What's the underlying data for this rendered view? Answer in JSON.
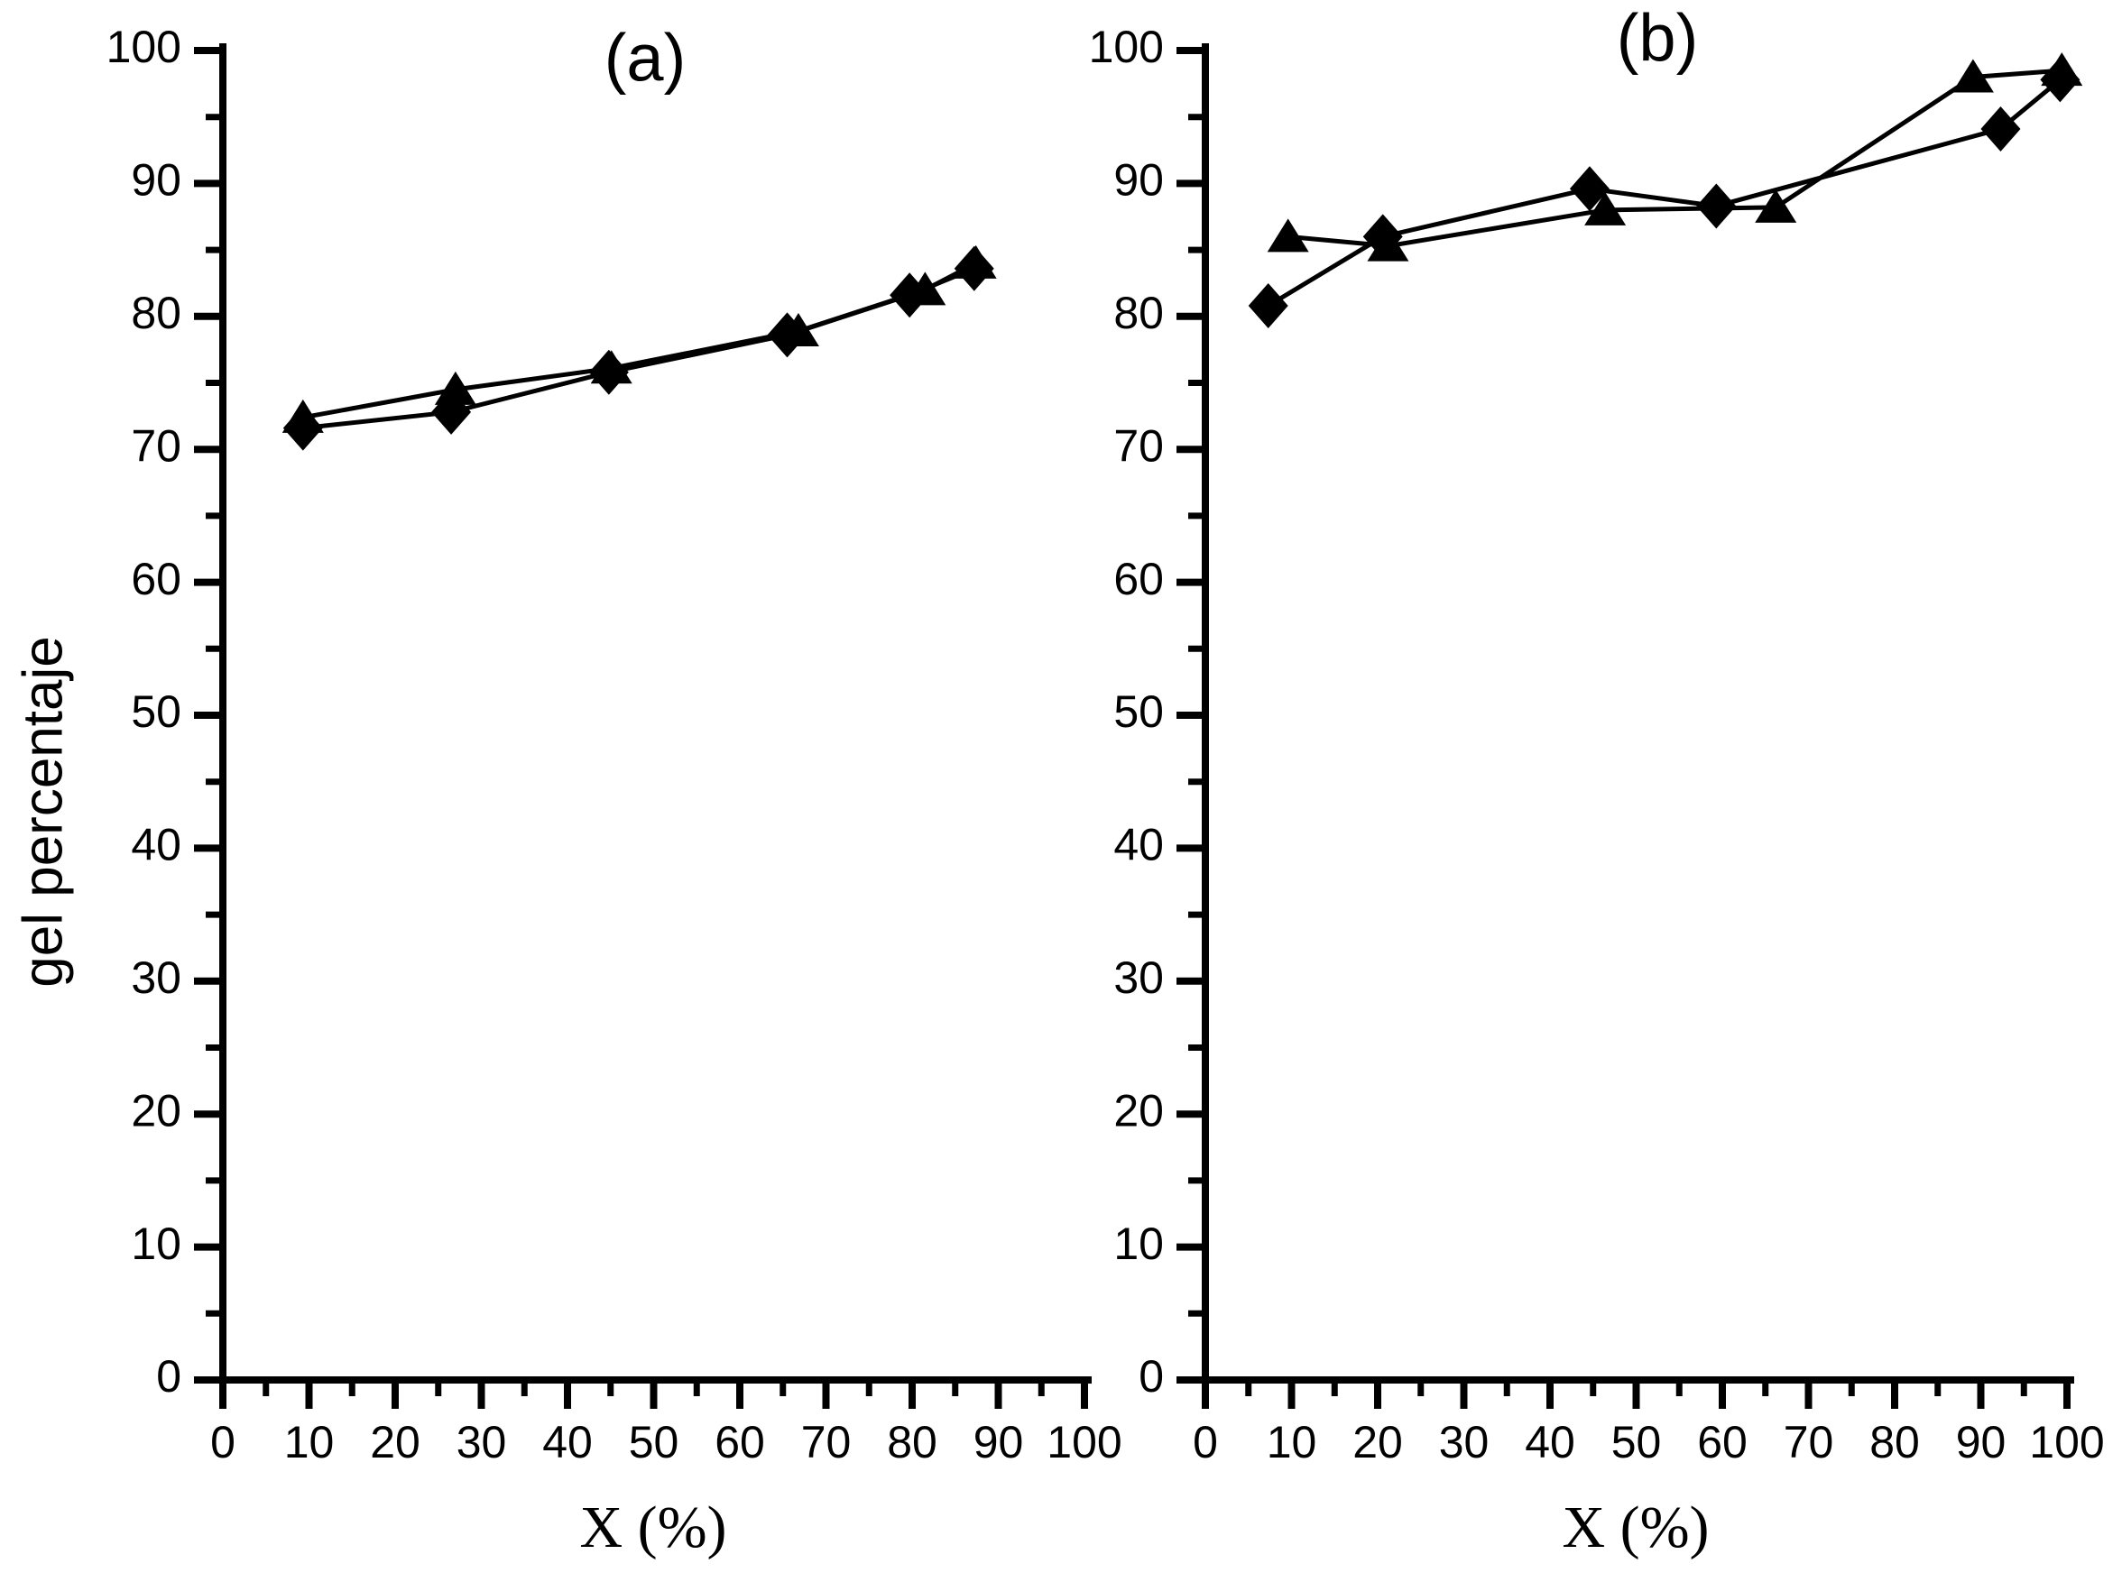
{
  "figure": {
    "background": "#ffffff",
    "ink_color": "#000000",
    "y_axis_label": "gel percentaje"
  },
  "chart_data": [
    {
      "id": "a",
      "type": "line",
      "title": "(a)",
      "xlabel": "X (%)",
      "ylabel": "gel percentaje",
      "xlim": [
        0,
        100
      ],
      "ylim": [
        0,
        100
      ],
      "grid": "off",
      "legend": "none",
      "x_tick_labels": [
        "0",
        "10",
        "20",
        "30",
        "40",
        "50",
        "60",
        "70",
        "80",
        "90",
        "100"
      ],
      "y_tick_labels": [
        "0",
        "10",
        "20",
        "30",
        "40",
        "50",
        "60",
        "70",
        "80",
        "90",
        "100"
      ],
      "minor_tick_step": 5,
      "series": [
        {
          "name": "diamond series",
          "marker": "diamond",
          "color": "#000000",
          "x": [
            9.3,
            26.5,
            44.8,
            65.5,
            79.7,
            87.2
          ],
          "y": [
            71.6,
            72.8,
            75.8,
            78.6,
            81.6,
            83.6
          ]
        },
        {
          "name": "triangle series",
          "marker": "triangle-up",
          "color": "#000000",
          "x": [
            9.3,
            27.0,
            45.1,
            66.8,
            81.5,
            87.4
          ],
          "y": [
            72.4,
            74.5,
            76.1,
            78.9,
            82.0,
            84.0
          ]
        }
      ]
    },
    {
      "id": "b",
      "type": "line",
      "title": "(b)",
      "xlabel": "X (%)",
      "ylabel": "gel percentaje",
      "xlim": [
        0,
        100
      ],
      "ylim": [
        0,
        100
      ],
      "grid": "off",
      "legend": "none",
      "x_tick_labels": [
        "0",
        "10",
        "20",
        "30",
        "40",
        "50",
        "60",
        "70",
        "80",
        "90",
        "100"
      ],
      "y_tick_labels": [
        "0",
        "10",
        "20",
        "30",
        "40",
        "50",
        "60",
        "70",
        "80",
        "90",
        "100"
      ],
      "minor_tick_step": 5,
      "series": [
        {
          "name": "diamond series",
          "marker": "diamond",
          "color": "#000000",
          "x": [
            7.3,
            20.6,
            44.6,
            59.3,
            92.3,
            99.2
          ],
          "y": [
            80.8,
            86.0,
            89.6,
            88.3,
            94.1,
            97.8
          ]
        },
        {
          "name": "triangle series",
          "marker": "triangle-up",
          "color": "#000000",
          "x": [
            9.6,
            21.2,
            46.4,
            66.2,
            89.1,
            99.4
          ],
          "y": [
            86.0,
            85.3,
            88.0,
            88.2,
            98.0,
            98.5
          ]
        }
      ]
    }
  ]
}
